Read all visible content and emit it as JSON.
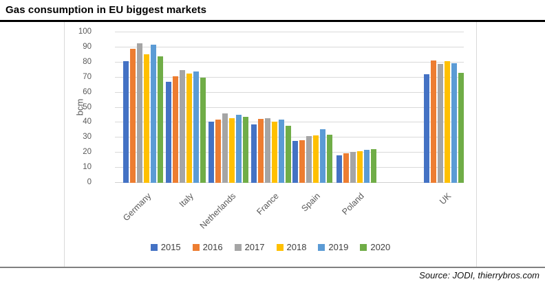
{
  "header": {
    "title": "Gas consumption in EU biggest markets"
  },
  "footer": {
    "source": "Source: JODI, thierrybros.com"
  },
  "chart_data": {
    "type": "bar",
    "title": "Gas consumption in EU biggest markets",
    "xlabel": "",
    "ylabel": "bcm",
    "ylim": [
      0,
      100
    ],
    "yticks": [
      0,
      10,
      20,
      30,
      40,
      50,
      60,
      70,
      80,
      90,
      100
    ],
    "grid": true,
    "legend_position": "bottom",
    "categories": [
      "Germany",
      "Italy",
      "Netherlands",
      "France",
      "Spain",
      "Poland",
      "UK"
    ],
    "category_centers_pct": [
      8.1,
      20.3,
      32.5,
      44.7,
      56.7,
      69.2,
      94.2
    ],
    "series": [
      {
        "name": "2015",
        "color": "#4472C4",
        "values": [
          81,
          67,
          40.5,
          39,
          28,
          18.5,
          72
        ]
      },
      {
        "name": "2016",
        "color": "#ED7D31",
        "values": [
          89,
          71,
          42,
          42.5,
          28.5,
          19.5,
          81.5
        ]
      },
      {
        "name": "2017",
        "color": "#A5A5A5",
        "values": [
          92.5,
          75,
          46,
          43,
          31,
          20.5,
          79
        ]
      },
      {
        "name": "2018",
        "color": "#FFC000",
        "values": [
          85.5,
          72.5,
          43,
          40.5,
          31.5,
          21,
          81
        ]
      },
      {
        "name": "2019",
        "color": "#5B9BD5",
        "values": [
          92,
          74,
          45,
          42,
          35.5,
          22,
          79.5
        ]
      },
      {
        "name": "2020",
        "color": "#70AD47",
        "values": [
          84,
          70,
          44,
          38,
          32,
          22.5,
          73
        ]
      }
    ],
    "colors": {
      "gridline": "#D9D9D9",
      "axis_text": "#595959",
      "title_text": "#000000",
      "frame_border": "#D9D9D9",
      "bottom_rule": "#808080"
    }
  }
}
